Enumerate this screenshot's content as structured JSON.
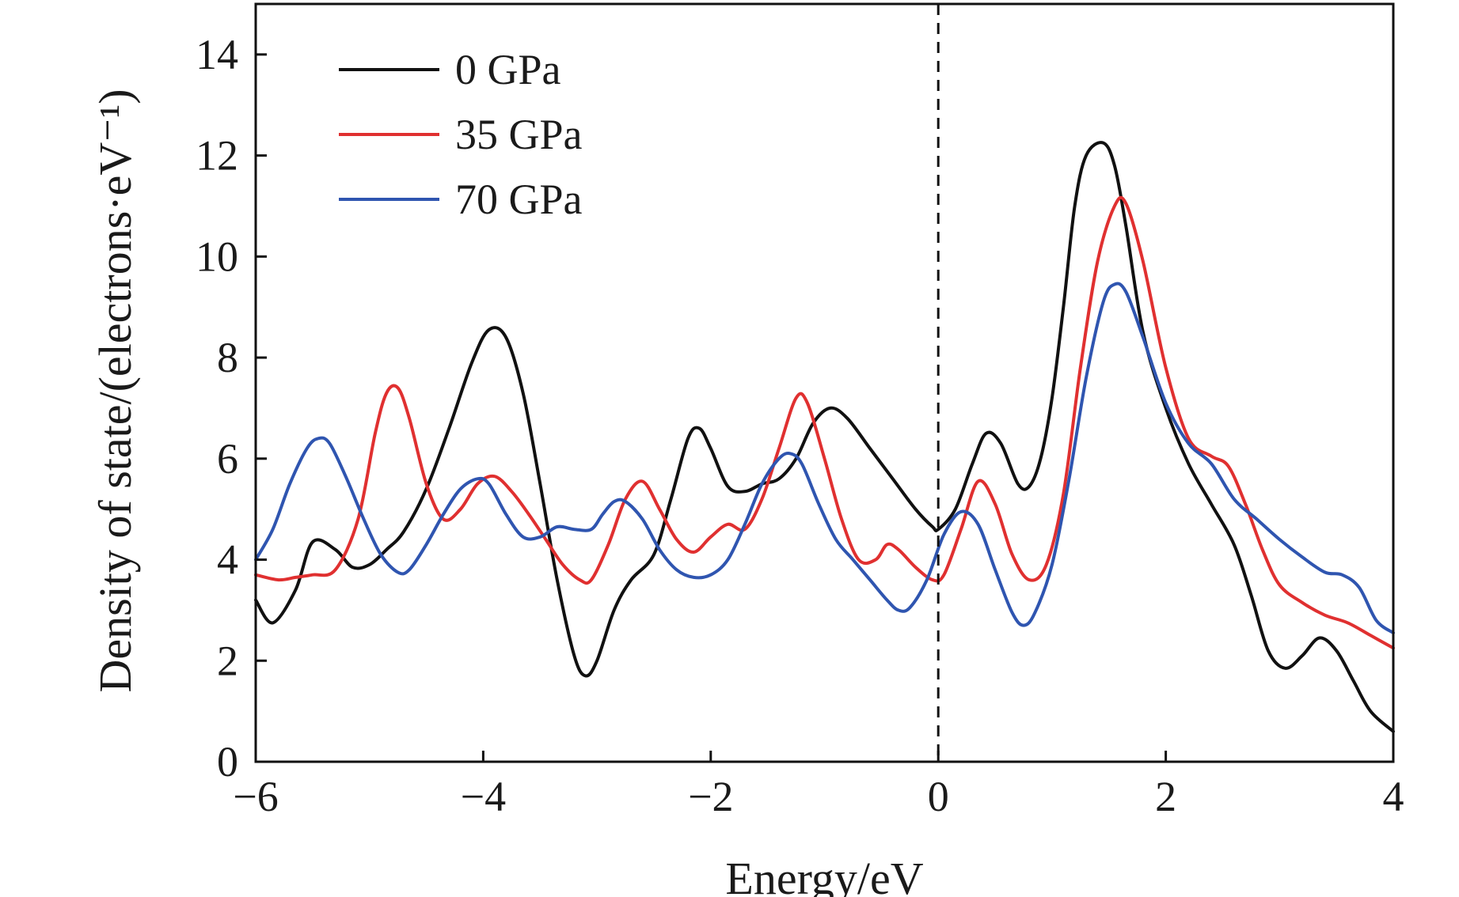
{
  "chart_data": {
    "type": "line",
    "title": "",
    "xlabel": "Energy/eV",
    "ylabel": "Density of state/(electrons·eV⁻¹)",
    "xlim": [
      -6,
      4
    ],
    "ylim": [
      0,
      15
    ],
    "xticks": [
      -6,
      -4,
      -2,
      0,
      2,
      4
    ],
    "xtick_labels": [
      "−6",
      "−4",
      "−2",
      "0",
      "2",
      "4"
    ],
    "yticks": [
      0,
      2,
      4,
      6,
      8,
      10,
      12,
      14
    ],
    "ytick_labels": [
      "0",
      "2",
      "4",
      "6",
      "8",
      "10",
      "12",
      "14"
    ],
    "grid": false,
    "legend_position": "top-left",
    "fermi_level": 0,
    "series": [
      {
        "name": "0 GPa",
        "color": "#111111",
        "x": [
          -6.0,
          -5.85,
          -5.65,
          -5.5,
          -5.3,
          -5.15,
          -5.0,
          -4.85,
          -4.7,
          -4.5,
          -4.3,
          -4.1,
          -3.95,
          -3.8,
          -3.65,
          -3.5,
          -3.35,
          -3.2,
          -3.1,
          -3.0,
          -2.85,
          -2.7,
          -2.5,
          -2.35,
          -2.2,
          -2.1,
          -2.0,
          -1.85,
          -1.7,
          -1.55,
          -1.4,
          -1.25,
          -1.1,
          -0.95,
          -0.8,
          -0.6,
          -0.4,
          -0.2,
          -0.05,
          0.0,
          0.15,
          0.3,
          0.42,
          0.55,
          0.7,
          0.8,
          0.9,
          1.0,
          1.1,
          1.2,
          1.3,
          1.45,
          1.55,
          1.65,
          1.8,
          2.0,
          2.2,
          2.4,
          2.6,
          2.75,
          2.9,
          3.05,
          3.2,
          3.35,
          3.5,
          3.65,
          3.8,
          4.0
        ],
        "values": [
          3.2,
          2.75,
          3.4,
          4.35,
          4.2,
          3.85,
          3.9,
          4.2,
          4.55,
          5.4,
          6.6,
          7.9,
          8.55,
          8.4,
          7.3,
          5.5,
          3.6,
          2.1,
          1.7,
          2.0,
          3.0,
          3.6,
          4.1,
          5.2,
          6.4,
          6.6,
          6.2,
          5.45,
          5.35,
          5.5,
          5.6,
          6.0,
          6.7,
          7.0,
          6.8,
          6.2,
          5.6,
          5.0,
          4.65,
          4.6,
          5.0,
          5.9,
          6.5,
          6.3,
          5.5,
          5.45,
          6.0,
          7.2,
          9.0,
          11.0,
          12.0,
          12.25,
          11.8,
          10.6,
          8.5,
          7.0,
          5.9,
          5.1,
          4.3,
          3.3,
          2.2,
          1.85,
          2.1,
          2.45,
          2.2,
          1.6,
          1.0,
          0.6
        ]
      },
      {
        "name": "35 GPa",
        "color": "#e03030",
        "x": [
          -6.0,
          -5.8,
          -5.65,
          -5.5,
          -5.3,
          -5.1,
          -4.95,
          -4.85,
          -4.75,
          -4.65,
          -4.5,
          -4.35,
          -4.2,
          -4.05,
          -3.9,
          -3.75,
          -3.6,
          -3.45,
          -3.3,
          -3.15,
          -3.05,
          -2.9,
          -2.75,
          -2.6,
          -2.45,
          -2.3,
          -2.15,
          -2.0,
          -1.85,
          -1.7,
          -1.55,
          -1.4,
          -1.25,
          -1.15,
          -1.0,
          -0.85,
          -0.7,
          -0.55,
          -0.45,
          -0.35,
          -0.2,
          -0.05,
          0.05,
          0.2,
          0.35,
          0.5,
          0.65,
          0.8,
          0.95,
          1.1,
          1.25,
          1.4,
          1.55,
          1.65,
          1.8,
          2.0,
          2.2,
          2.4,
          2.55,
          2.7,
          2.85,
          3.0,
          3.2,
          3.4,
          3.6,
          3.8,
          4.0
        ],
        "values": [
          3.7,
          3.6,
          3.65,
          3.7,
          3.8,
          4.8,
          6.5,
          7.3,
          7.4,
          6.8,
          5.5,
          4.8,
          5.0,
          5.5,
          5.65,
          5.35,
          4.9,
          4.4,
          3.9,
          3.6,
          3.6,
          4.3,
          5.2,
          5.55,
          5.0,
          4.4,
          4.15,
          4.45,
          4.7,
          4.6,
          5.2,
          6.2,
          7.2,
          7.1,
          6.0,
          4.8,
          4.0,
          4.0,
          4.3,
          4.2,
          3.85,
          3.6,
          3.7,
          4.6,
          5.55,
          5.1,
          4.1,
          3.6,
          3.9,
          5.3,
          7.8,
          9.9,
          11.0,
          11.05,
          9.9,
          7.8,
          6.4,
          6.05,
          5.85,
          5.1,
          4.2,
          3.5,
          3.15,
          2.9,
          2.75,
          2.5,
          2.25
        ]
      },
      {
        "name": "70 GPa",
        "color": "#2f55b0",
        "x": [
          -6.0,
          -5.85,
          -5.7,
          -5.55,
          -5.45,
          -5.35,
          -5.2,
          -5.05,
          -4.9,
          -4.75,
          -4.65,
          -4.5,
          -4.35,
          -4.2,
          -4.05,
          -3.95,
          -3.8,
          -3.65,
          -3.5,
          -3.35,
          -3.2,
          -3.05,
          -2.95,
          -2.85,
          -2.75,
          -2.6,
          -2.45,
          -2.3,
          -2.15,
          -2.0,
          -1.85,
          -1.7,
          -1.55,
          -1.4,
          -1.3,
          -1.2,
          -1.05,
          -0.9,
          -0.75,
          -0.6,
          -0.45,
          -0.35,
          -0.25,
          -0.1,
          0.05,
          0.2,
          0.35,
          0.5,
          0.65,
          0.75,
          0.85,
          1.0,
          1.15,
          1.3,
          1.45,
          1.55,
          1.65,
          1.8,
          2.0,
          2.2,
          2.4,
          2.6,
          2.8,
          3.0,
          3.2,
          3.4,
          3.55,
          3.7,
          3.85,
          4.0
        ],
        "values": [
          4.0,
          4.6,
          5.5,
          6.2,
          6.4,
          6.3,
          5.6,
          4.8,
          4.1,
          3.75,
          3.8,
          4.3,
          4.9,
          5.4,
          5.6,
          5.5,
          4.9,
          4.45,
          4.45,
          4.65,
          4.6,
          4.6,
          4.9,
          5.15,
          5.15,
          4.8,
          4.2,
          3.8,
          3.65,
          3.7,
          4.0,
          4.7,
          5.5,
          6.0,
          6.1,
          5.9,
          5.1,
          4.4,
          4.0,
          3.6,
          3.2,
          3.0,
          3.05,
          3.6,
          4.5,
          4.95,
          4.7,
          3.8,
          2.95,
          2.7,
          2.95,
          3.9,
          5.6,
          7.6,
          9.1,
          9.45,
          9.3,
          8.4,
          7.1,
          6.3,
          5.9,
          5.2,
          4.8,
          4.4,
          4.05,
          3.75,
          3.7,
          3.45,
          2.8,
          2.55
        ]
      }
    ]
  }
}
